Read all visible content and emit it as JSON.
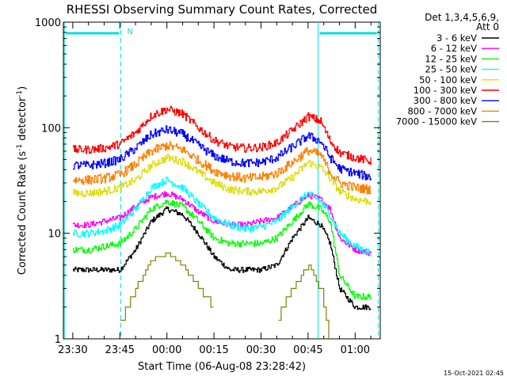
{
  "chart_data": {
    "type": "line",
    "title": "RHESSI Observing Summary Count Rates, Corrected",
    "xlabel": "Start Time (06-Aug-08 23:28:42)",
    "ylabel_main": "Corrected Count Rate (s",
    "ylabel_sup1": "-1",
    "ylabel_mid": " detector",
    "ylabel_sup2": "-1",
    "ylabel_end": ")",
    "yscale": "log",
    "ylim": [
      1,
      1000
    ],
    "xlim_minutes": [
      -3,
      98
    ],
    "x_ticks": [
      {
        "minutes": 0,
        "label": "23:30"
      },
      {
        "minutes": 15,
        "label": "23:45"
      },
      {
        "minutes": 30,
        "label": "00:00"
      },
      {
        "minutes": 45,
        "label": "00:15"
      },
      {
        "minutes": 60,
        "label": "00:30"
      },
      {
        "minutes": 75,
        "label": "00:45"
      },
      {
        "minutes": 90,
        "label": "01:00"
      }
    ],
    "y_ticks": [
      {
        "value": 1000,
        "label": "1000"
      },
      {
        "value": 100,
        "label": "100"
      },
      {
        "value": 10,
        "label": "10"
      },
      {
        "value": 1,
        "label": "1"
      }
    ],
    "legend_title_1": "Det 1,3,4,5,6,9,",
    "legend_title_2": "Att 0",
    "legend_position": "right",
    "night_label": "N",
    "timestamp": "15-Oct-2021 02:45",
    "night_intervals_minutes": [
      [
        -2.7,
        15.3
      ],
      [
        78.2,
        97.4
      ]
    ],
    "x": [
      0,
      5,
      10,
      15,
      20,
      25,
      30,
      35,
      40,
      45,
      50,
      55,
      60,
      65,
      70,
      75,
      79,
      82,
      85,
      90,
      95
    ],
    "series": [
      {
        "name": "3 - 6 keV",
        "color": "#000000",
        "values": [
          4.5,
          4.5,
          4.5,
          4.5,
          7,
          13,
          17,
          15,
          10,
          6,
          4.5,
          4.5,
          4.5,
          5,
          9,
          14,
          12,
          8,
          3,
          2,
          2
        ]
      },
      {
        "name": "6 - 12 keV",
        "color": "#ff00ff",
        "values": [
          12,
          12,
          13,
          14,
          18,
          22,
          24,
          21,
          16,
          13,
          12,
          12,
          13,
          14,
          18,
          23,
          21,
          17,
          9,
          7,
          6.5
        ]
      },
      {
        "name": "12 - 25 keV",
        "color": "#00ff00",
        "values": [
          7,
          7,
          7.5,
          8,
          11,
          17,
          20,
          18,
          13,
          9,
          8,
          8,
          8,
          9,
          13,
          19,
          17,
          13,
          4,
          2.5,
          2.5
        ]
      },
      {
        "name": "25 - 50 keV",
        "color": "#00ffff",
        "values": [
          10,
          10,
          10.5,
          12,
          17,
          27,
          32,
          27,
          19,
          14,
          12,
          11,
          11.5,
          13,
          18,
          24,
          20,
          15,
          10,
          7.5,
          6.5
        ]
      },
      {
        "name": "50 - 100 keV",
        "color": "#dddd00",
        "values": [
          24,
          24,
          25,
          27,
          32,
          44,
          52,
          48,
          38,
          30,
          26,
          25,
          25,
          27,
          34,
          47,
          42,
          33,
          25,
          21,
          20
        ]
      },
      {
        "name": "100 - 300 keV",
        "color": "#ff0000",
        "values": [
          62,
          62,
          64,
          70,
          90,
          130,
          150,
          135,
          100,
          76,
          66,
          64,
          65,
          72,
          95,
          128,
          115,
          75,
          58,
          52,
          48
        ]
      },
      {
        "name": "300 - 800 keV",
        "color": "#0000ff",
        "values": [
          44,
          44,
          46,
          50,
          64,
          86,
          96,
          87,
          68,
          54,
          48,
          46,
          47,
          52,
          66,
          84,
          74,
          52,
          41,
          37,
          34
        ]
      },
      {
        "name": "800 - 7000 keV",
        "color": "#ff8000",
        "values": [
          32,
          32,
          33,
          36,
          45,
          60,
          68,
          62,
          49,
          39,
          35,
          33,
          34,
          37,
          47,
          61,
          55,
          38,
          30,
          27,
          26
        ]
      },
      {
        "name": "7000 - 15000 keV",
        "color": "#808000",
        "values": [
          null,
          null,
          null,
          1.5,
          3,
          5.5,
          6.5,
          5,
          3,
          2,
          null,
          null,
          null,
          1.5,
          3,
          5,
          3,
          1,
          null,
          null,
          null
        ]
      }
    ]
  }
}
